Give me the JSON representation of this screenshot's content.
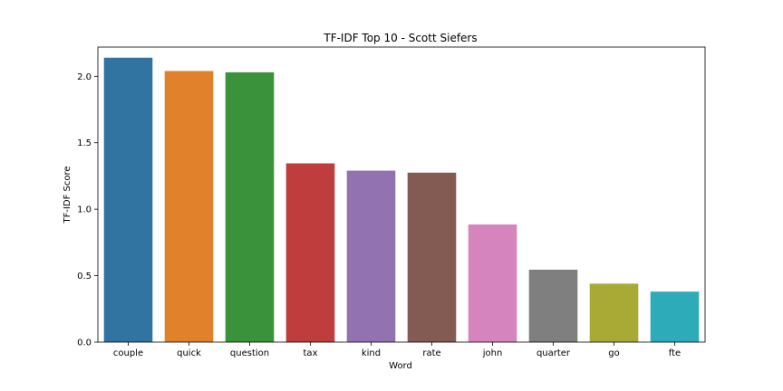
{
  "chart_data": {
    "type": "bar",
    "title": "TF-IDF Top 10 - Scott Siefers",
    "xlabel": "Word",
    "ylabel": "TF-IDF Score",
    "categories": [
      "couple",
      "quick",
      "question",
      "tax",
      "kind",
      "rate",
      "john",
      "quarter",
      "go",
      "fte"
    ],
    "values": [
      2.14,
      2.04,
      2.03,
      1.345,
      1.29,
      1.275,
      0.885,
      0.545,
      0.44,
      0.38
    ],
    "colors": [
      "#3274a1",
      "#e1812c",
      "#3a923a",
      "#c03d3e",
      "#9372b2",
      "#845b53",
      "#d684bd",
      "#7f7f7f",
      "#a9aa35",
      "#2eabb8"
    ],
    "ylim": [
      0,
      2.22
    ],
    "yticks": [
      "0.0",
      "0.5",
      "1.0",
      "1.5",
      "2.0"
    ],
    "grid": false,
    "legend": "none"
  }
}
